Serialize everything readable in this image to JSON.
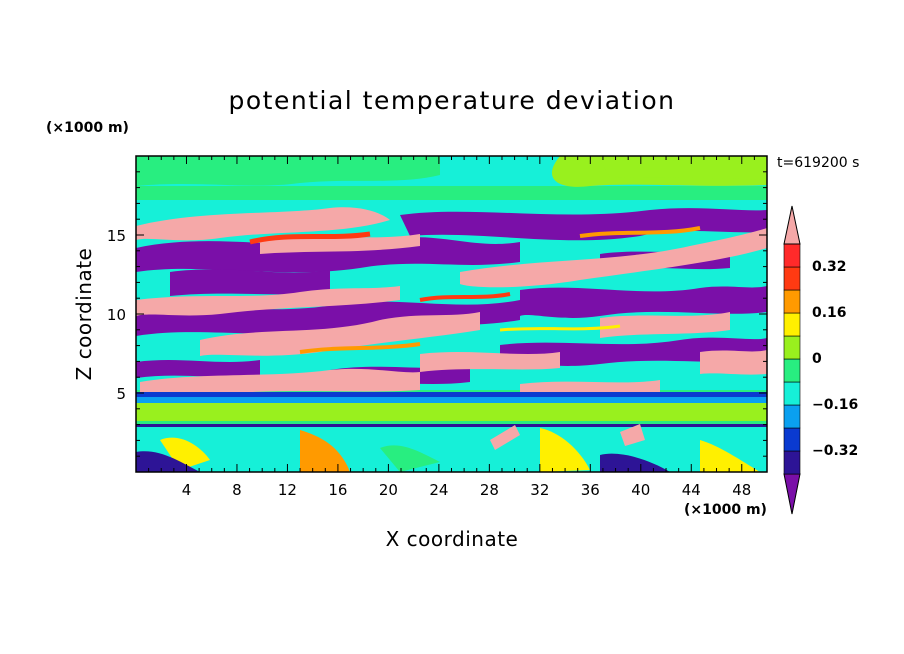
{
  "chart_data": {
    "type": "heatmap",
    "title": "potential temperature deviation",
    "xlabel": "X coordinate",
    "ylabel": "Z coordinate",
    "x_multiplier_label": "(×1000 m)",
    "y_multiplier_label": "(×1000 m)",
    "time_label": "t=619200 s",
    "xlim": [
      0,
      50
    ],
    "ylim": [
      0,
      20
    ],
    "x_ticks": [
      "4",
      "8",
      "12",
      "16",
      "20",
      "24",
      "28",
      "32",
      "36",
      "40",
      "44",
      "48"
    ],
    "y_ticks": [
      "5",
      "10",
      "15"
    ],
    "colorbar": {
      "levels": [
        -0.4,
        -0.32,
        -0.24,
        -0.16,
        -0.08,
        0,
        0.08,
        0.16,
        0.24,
        0.32,
        0.4
      ],
      "tick_labels": [
        "0.32",
        "0.16",
        "0",
        "−0.16",
        "−0.32"
      ],
      "colors": [
        "#7a0fa8",
        "#2d1496",
        "#0a3ad0",
        "#0aa0f0",
        "#16f0d8",
        "#28ee80",
        "#99f01e",
        "#fff000",
        "#ff9a00",
        "#ff3a12",
        "#ff2a2a",
        "#f5a8a8"
      ]
    },
    "bands": [
      {
        "z_range": [
          19.2,
          20
        ],
        "description": "mostly near zero (green)"
      },
      {
        "z_range": [
          5,
          17
        ],
        "description": "alternating positive (pink, >0.4) and negative (purple, <-0.4) tilted layers"
      },
      {
        "z_range": [
          4.5,
          5.1
        ],
        "description": "thin negative line (blue)"
      },
      {
        "z_range": [
          3.2,
          4.5
        ],
        "description": "near zero (green)"
      },
      {
        "z_range": [
          0,
          3.2
        ],
        "description": "mixed small-scale deviations, positive plumes near x=22-24, 30, 40"
      }
    ]
  }
}
